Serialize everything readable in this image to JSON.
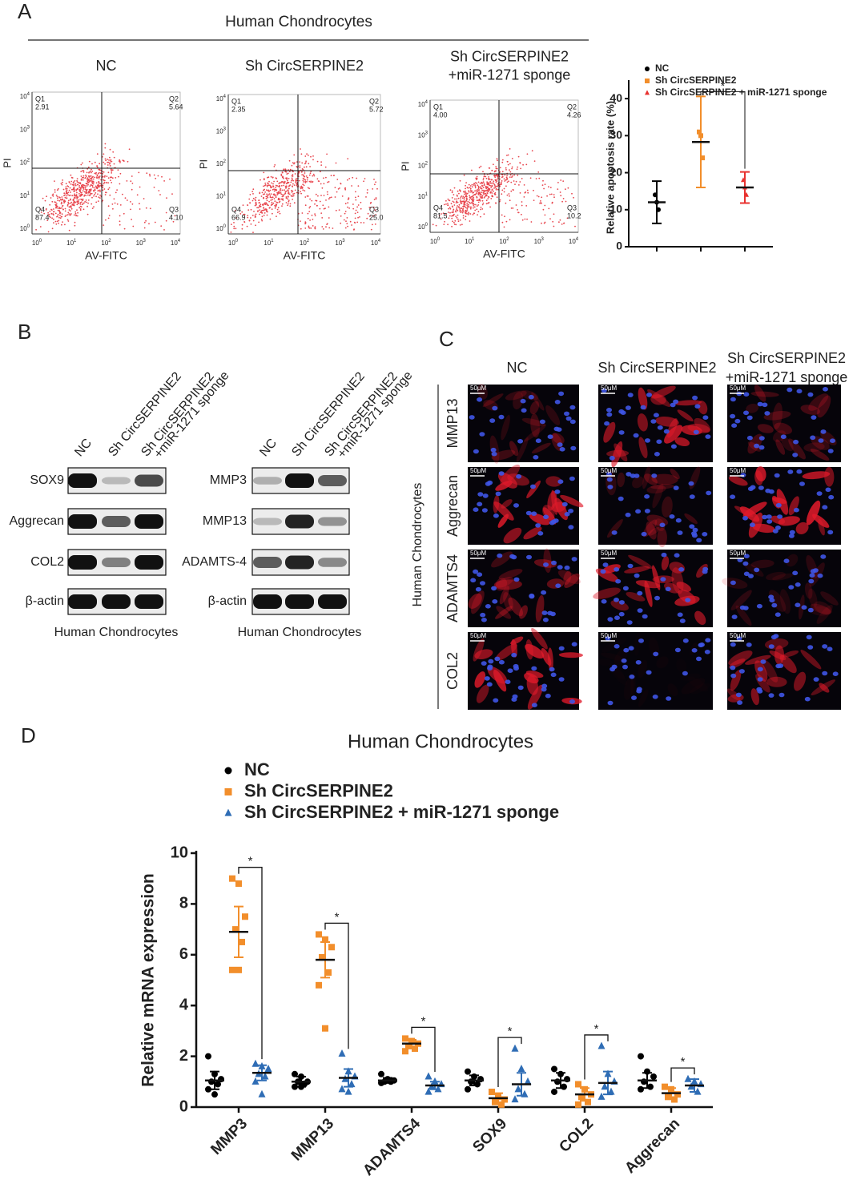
{
  "panel_labels": {
    "a": "A",
    "b": "B",
    "c": "C",
    "d": "D"
  },
  "panel_a": {
    "title": "Human Chondrocytes",
    "x_label": "AV-FITC",
    "y_label": "PI",
    "tick_base": "10",
    "tick_exponents": [
      "0",
      "1",
      "2",
      "3",
      "4"
    ],
    "quadrant_names": [
      "Q1",
      "Q2",
      "Q3",
      "Q4"
    ],
    "plots": [
      {
        "title": [
          "NC"
        ],
        "quadrants": [
          "2.91",
          "5.64",
          "4.10",
          "87.4"
        ]
      },
      {
        "title": [
          "Sh CircSERPINE2"
        ],
        "quadrants": [
          "2.35",
          "5.72",
          "25.0",
          "66.9"
        ]
      },
      {
        "title": [
          "Sh CircSERPINE2",
          "+miR-1271 sponge"
        ],
        "quadrants": [
          "4.00",
          "4.26",
          "10.2",
          "81.5"
        ]
      }
    ]
  },
  "panel_b": {
    "blots": [
      {
        "lanes": [
          [
            "NC"
          ],
          [
            "Sh CircSERPINE2"
          ],
          [
            "Sh CircSERPINE2",
            "+miR-1271 sponge"
          ]
        ],
        "rows": [
          "SOX9",
          "Aggrecan",
          "COL2",
          "β-actin"
        ],
        "footer": "Human Chondrocytes"
      },
      {
        "lanes": [
          [
            "NC"
          ],
          [
            "Sh CircSERPINE2"
          ],
          [
            "Sh CircSERPINE2",
            "+miR-1271 sponge"
          ]
        ],
        "rows": [
          "MMP3",
          "MMP13",
          "ADAMTS-4",
          "β-actin"
        ],
        "footer": "Human Chondrocytes"
      }
    ]
  },
  "panel_c": {
    "columns": [
      [
        "NC"
      ],
      [
        "Sh CircSERPINE2"
      ],
      [
        "Sh CircSERPINE2",
        "+miR-1271 sponge"
      ]
    ],
    "rows": [
      "MMP13",
      "Aggrecan",
      "ADAMTS4",
      "COL2"
    ],
    "side_label": "Human Chondrocytes",
    "scale_bar": "50μM"
  },
  "chart_data": [
    {
      "type": "dot",
      "y_label": "Relative apoptosis rate (%)",
      "ylim": [
        0,
        45
      ],
      "yticks": [
        0,
        10,
        20,
        30,
        40
      ],
      "significance_label": "*",
      "series": [
        {
          "name": "NC",
          "color": "#000000",
          "marker": "circle",
          "values": [
            14,
            12,
            10
          ],
          "mean": 12,
          "error": 5.7
        },
        {
          "name": "Sh CircSERPINE2",
          "color": "#f28e2b",
          "marker": "square",
          "values": [
            31,
            30,
            24
          ],
          "mean": 28.3,
          "error": 12.3
        },
        {
          "name": "Sh CircSERPINE2 + miR-1271 sponge",
          "color": "#e8312f",
          "marker": "triangle",
          "values": [
            18,
            16,
            14
          ],
          "mean": 16,
          "error": 4.2
        }
      ]
    },
    {
      "type": "dot",
      "title": "Human Chondrocytes",
      "y_label": "Relative mRNA expression",
      "categories": [
        "MMP3",
        "MMP13",
        "ADAMTS4",
        "SOX9",
        "COL2",
        "Aggrecan"
      ],
      "ylim": [
        0,
        10
      ],
      "yticks": [
        0,
        2,
        4,
        6,
        8,
        10
      ],
      "significance_label": "*",
      "series": [
        {
          "name": "NC",
          "color": "#000000",
          "marker": "circle",
          "values": [
            [
              2.0,
              1.3,
              1.1,
              1.0,
              0.9,
              0.7,
              0.5
            ],
            [
              1.3,
              1.2,
              1.0,
              1.0,
              0.9,
              0.8,
              0.8
            ],
            [
              1.3,
              1.1,
              1.05,
              1.0,
              1.0,
              0.95
            ],
            [
              1.4,
              1.2,
              1.1,
              1.0,
              0.9,
              0.7
            ],
            [
              1.5,
              1.3,
              1.1,
              1.0,
              0.8,
              0.6
            ],
            [
              2.0,
              1.4,
              1.2,
              1.0,
              0.8,
              0.7
            ]
          ],
          "mean": [
            1.05,
            1.0,
            1.05,
            1.05,
            1.05,
            1.05
          ],
          "error": [
            0.35,
            0.2,
            0.1,
            0.2,
            0.3,
            0.3
          ]
        },
        {
          "name": "Sh CircSERPINE2",
          "color": "#f28e2b",
          "marker": "square",
          "values": [
            [
              9.0,
              8.8,
              7.5,
              7.0,
              6.5,
              5.4,
              5.4
            ],
            [
              6.8,
              6.6,
              6.3,
              5.9,
              5.3,
              4.8,
              3.1
            ],
            [
              2.7,
              2.6,
              2.5,
              2.4,
              2.3,
              2.2
            ],
            [
              0.6,
              0.4,
              0.3,
              0.2,
              0.1
            ],
            [
              0.9,
              0.7,
              0.5,
              0.4,
              0.2,
              0.1
            ],
            [
              0.8,
              0.7,
              0.5,
              0.4,
              0.3
            ]
          ],
          "mean": [
            6.9,
            5.8,
            2.5,
            0.35,
            0.5,
            0.55
          ],
          "error": [
            1.0,
            0.7,
            0.15,
            0.2,
            0.25,
            0.2
          ]
        },
        {
          "name": "Sh CircSERPINE2 + miR-1271 sponge",
          "color": "#2f6db5",
          "marker": "triangle",
          "values": [
            [
              1.7,
              1.6,
              1.5,
              1.3,
              1.2,
              1.0,
              0.5
            ],
            [
              2.1,
              1.4,
              1.2,
              1.1,
              0.9,
              0.7,
              0.6
            ],
            [
              1.2,
              1.0,
              0.9,
              0.8,
              0.7,
              0.6
            ],
            [
              2.3,
              1.5,
              1.0,
              0.7,
              0.5,
              0.3
            ],
            [
              2.4,
              1.3,
              1.0,
              0.8,
              0.6,
              0.4
            ],
            [
              1.1,
              1.0,
              0.9,
              0.8,
              0.6
            ]
          ],
          "mean": [
            1.35,
            1.15,
            0.85,
            0.9,
            0.95,
            0.85
          ],
          "error": [
            0.3,
            0.35,
            0.15,
            0.45,
            0.45,
            0.25
          ]
        }
      ]
    }
  ]
}
